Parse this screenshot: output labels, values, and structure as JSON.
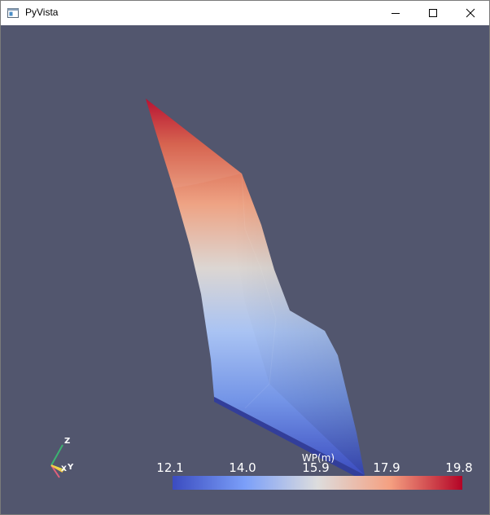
{
  "window": {
    "title": "PyVista",
    "icon": "app-window-icon",
    "controls": [
      "minimize-icon",
      "maximize-icon",
      "close-icon"
    ]
  },
  "viewport": {
    "background": "#52566e",
    "colormap": "coolwarm",
    "axes": {
      "x": "X",
      "y": "Y",
      "z": "Z"
    },
    "scalar_bar": {
      "title": "WP(m)",
      "ticks": [
        "12.1",
        "14.0",
        "15.9",
        "17.9",
        "19.8"
      ],
      "min": 12.1,
      "max": 19.8
    }
  }
}
